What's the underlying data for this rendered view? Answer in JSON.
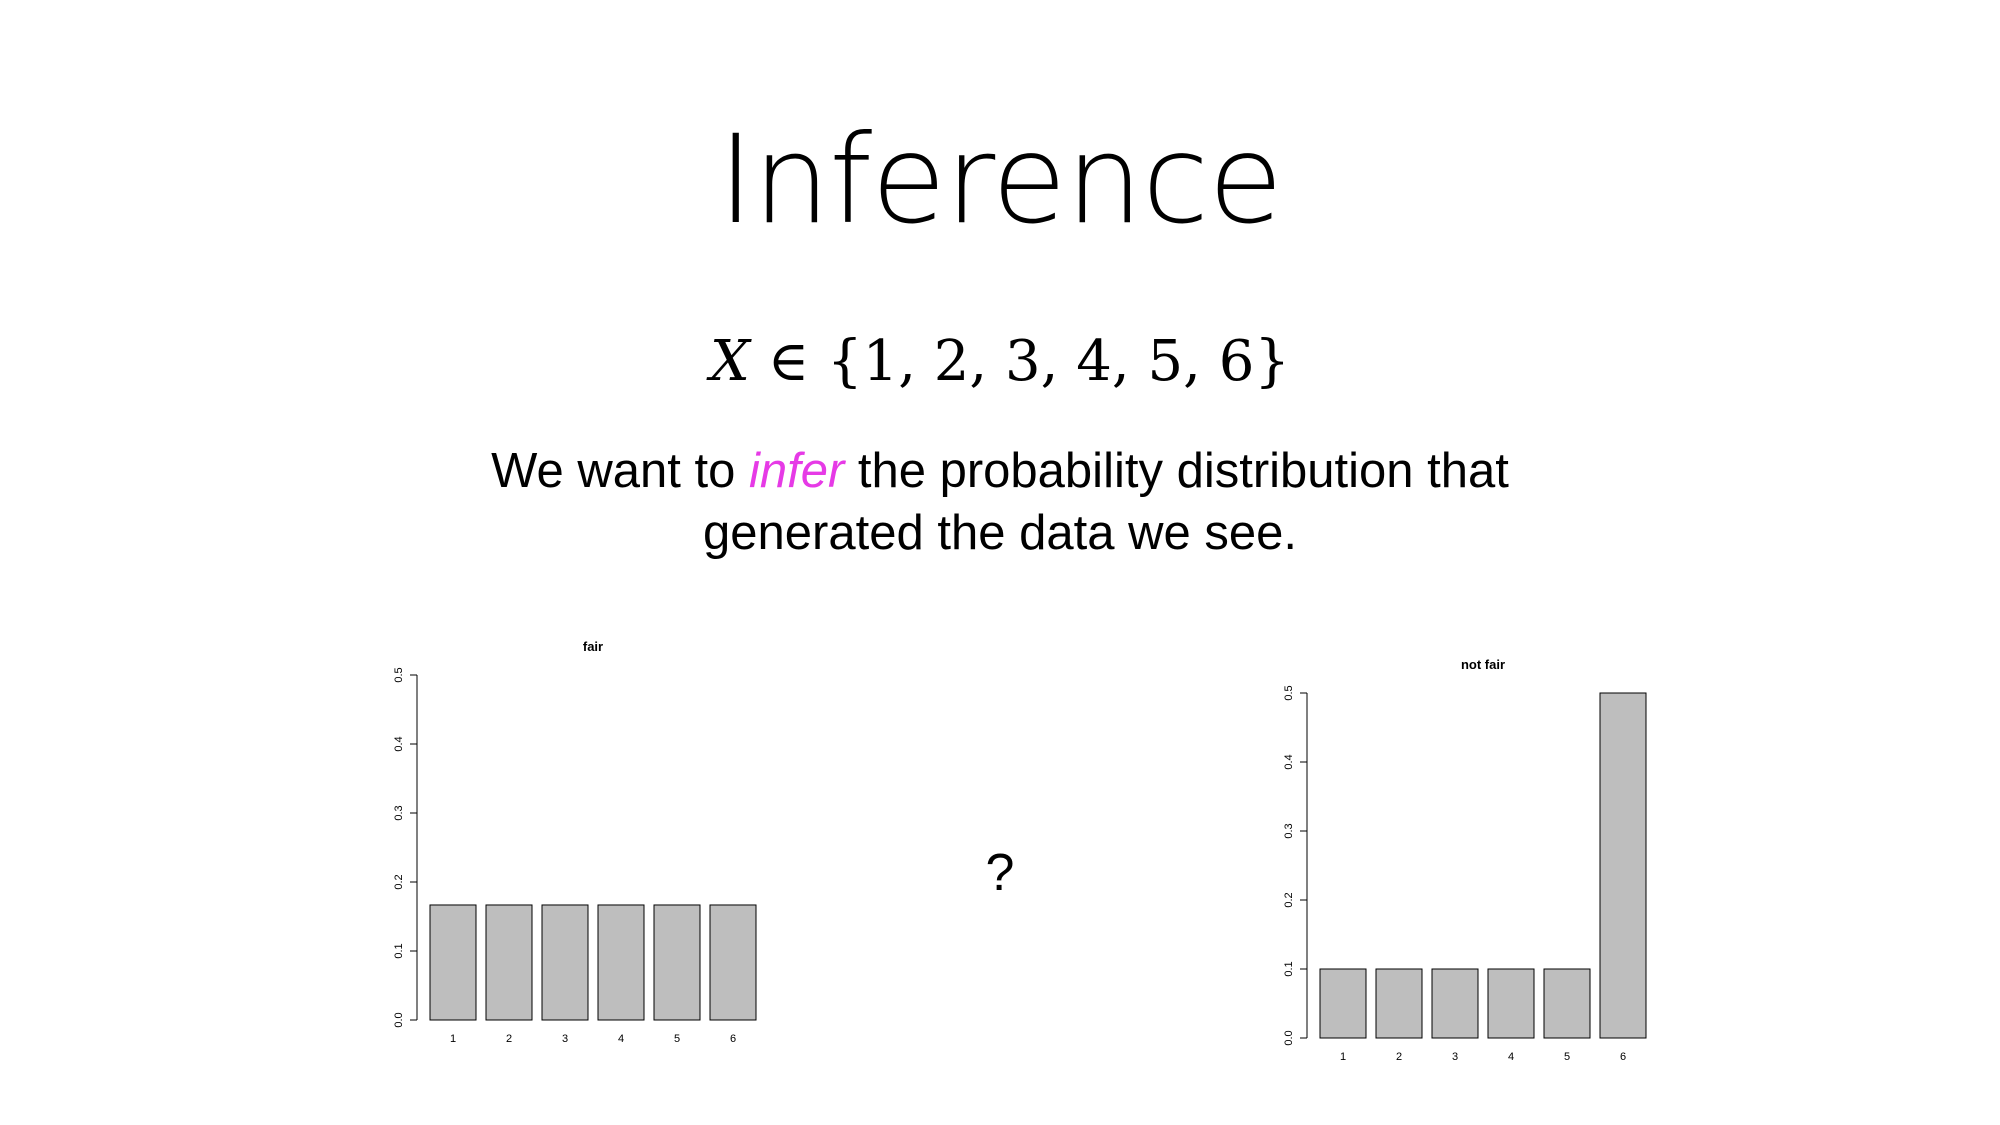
{
  "slide": {
    "title": "Inference",
    "formula": {
      "variable": "X",
      "set_text": "∈ {1, 2, 3, 4, 5, 6}"
    },
    "statement": {
      "before": "We want to ",
      "emphasis": "infer",
      "after": " the probability distribution that",
      "line2": "generated the data we see."
    },
    "question_mark": "?"
  },
  "colors": {
    "emphasis": "#e63ae6",
    "bar_fill": "#bebebe",
    "bar_stroke": "#000000"
  },
  "chart_data": [
    {
      "type": "bar",
      "title": "fair",
      "categories": [
        "1",
        "2",
        "3",
        "4",
        "5",
        "6"
      ],
      "values": [
        0.1667,
        0.1667,
        0.1667,
        0.1667,
        0.1667,
        0.1667
      ],
      "ylim": [
        0,
        0.5
      ],
      "yticks": [
        "0.0",
        "0.1",
        "0.2",
        "0.3",
        "0.4",
        "0.5"
      ],
      "xlabel": "",
      "ylabel": "",
      "grid": false
    },
    {
      "type": "bar",
      "title": "not fair",
      "categories": [
        "1",
        "2",
        "3",
        "4",
        "5",
        "6"
      ],
      "values": [
        0.1,
        0.1,
        0.1,
        0.1,
        0.1,
        0.5
      ],
      "ylim": [
        0,
        0.5
      ],
      "yticks": [
        "0.0",
        "0.1",
        "0.2",
        "0.3",
        "0.4",
        "0.5"
      ],
      "xlabel": "",
      "ylabel": "",
      "grid": false
    }
  ]
}
